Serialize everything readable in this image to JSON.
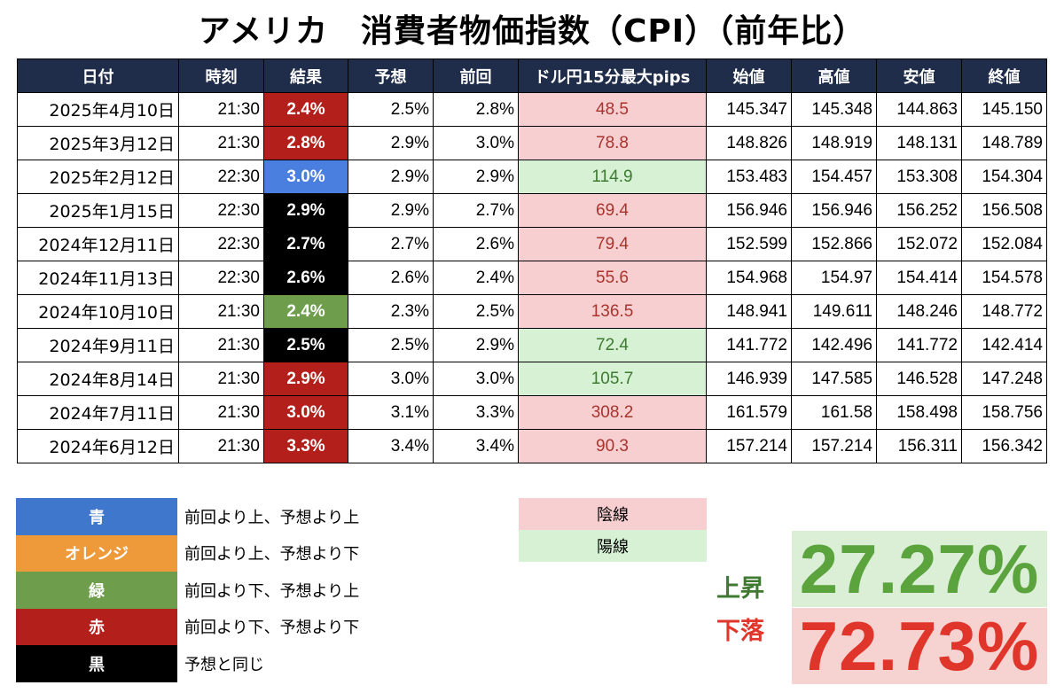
{
  "title": "アメリカ　消費者物価指数（CPI）（前年比）",
  "table": {
    "headers": [
      "日付",
      "時刻",
      "結果",
      "予想",
      "前回",
      "ドル円15分最大pips",
      "始値",
      "高値",
      "安値",
      "終値"
    ],
    "rows": [
      {
        "date": "2025年4月10日",
        "time": "21:30",
        "result": "2.4%",
        "result_color": "#b3201c",
        "forecast": "2.5%",
        "previous": "2.8%",
        "pips": "48.5",
        "pips_type": "陰線",
        "open": "145.347",
        "high": "145.348",
        "low": "144.863",
        "close": "145.150"
      },
      {
        "date": "2025年3月12日",
        "time": "21:30",
        "result": "2.8%",
        "result_color": "#b3201c",
        "forecast": "2.9%",
        "previous": "3.0%",
        "pips": "78.8",
        "pips_type": "陰線",
        "open": "148.826",
        "high": "148.919",
        "low": "148.131",
        "close": "148.789"
      },
      {
        "date": "2025年2月12日",
        "time": "22:30",
        "result": "3.0%",
        "result_color": "#4a7fe0",
        "forecast": "2.9%",
        "previous": "2.9%",
        "pips": "114.9",
        "pips_type": "陽線",
        "open": "153.483",
        "high": "154.457",
        "low": "153.308",
        "close": "154.304"
      },
      {
        "date": "2025年1月15日",
        "time": "22:30",
        "result": "2.9%",
        "result_color": "#000000",
        "forecast": "2.9%",
        "previous": "2.7%",
        "pips": "69.4",
        "pips_type": "陰線",
        "open": "156.946",
        "high": "156.946",
        "low": "156.252",
        "close": "156.508"
      },
      {
        "date": "2024年12月11日",
        "time": "22:30",
        "result": "2.7%",
        "result_color": "#000000",
        "forecast": "2.7%",
        "previous": "2.6%",
        "pips": "79.4",
        "pips_type": "陰線",
        "open": "152.599",
        "high": "152.866",
        "low": "152.072",
        "close": "152.084"
      },
      {
        "date": "2024年11月13日",
        "time": "22:30",
        "result": "2.6%",
        "result_color": "#000000",
        "forecast": "2.6%",
        "previous": "2.4%",
        "pips": "55.6",
        "pips_type": "陰線",
        "open": "154.968",
        "high": "154.97",
        "low": "154.414",
        "close": "154.578"
      },
      {
        "date": "2024年10月10日",
        "time": "21:30",
        "result": "2.4%",
        "result_color": "#6e9e4c",
        "forecast": "2.3%",
        "previous": "2.5%",
        "pips": "136.5",
        "pips_type": "陰線",
        "open": "148.941",
        "high": "149.611",
        "low": "148.246",
        "close": "148.772"
      },
      {
        "date": "2024年9月11日",
        "time": "21:30",
        "result": "2.5%",
        "result_color": "#000000",
        "forecast": "2.5%",
        "previous": "2.9%",
        "pips": "72.4",
        "pips_type": "陽線",
        "open": "141.772",
        "high": "142.496",
        "low": "141.772",
        "close": "142.414"
      },
      {
        "date": "2024年8月14日",
        "time": "21:30",
        "result": "2.9%",
        "result_color": "#b3201c",
        "forecast": "3.0%",
        "previous": "3.0%",
        "pips": "105.7",
        "pips_type": "陽線",
        "open": "146.939",
        "high": "147.585",
        "low": "146.528",
        "close": "147.248"
      },
      {
        "date": "2024年7月11日",
        "time": "21:30",
        "result": "3.0%",
        "result_color": "#b3201c",
        "forecast": "3.1%",
        "previous": "3.3%",
        "pips": "308.2",
        "pips_type": "陰線",
        "open": "161.579",
        "high": "161.58",
        "low": "158.498",
        "close": "158.756"
      },
      {
        "date": "2024年6月12日",
        "time": "21:30",
        "result": "3.3%",
        "result_color": "#b3201c",
        "forecast": "3.4%",
        "previous": "3.4%",
        "pips": "90.3",
        "pips_type": "陰線",
        "open": "157.214",
        "high": "157.214",
        "low": "156.311",
        "close": "156.342"
      }
    ]
  },
  "pips_styles": {
    "陰線": {
      "bg": "#f7cfd1",
      "fg": "#a8342e"
    },
    "陽線": {
      "bg": "#d6f1d4",
      "fg": "#3d7a32"
    }
  },
  "legend": [
    {
      "label": "青",
      "color": "#3f77cc",
      "desc": "前回より上、予想より上"
    },
    {
      "label": "オレンジ",
      "color": "#ef9a3a",
      "desc": "前回より上、予想より下"
    },
    {
      "label": "緑",
      "color": "#6e9e4c",
      "desc": "前回より下、予想より上"
    },
    {
      "label": "赤",
      "color": "#b3201c",
      "desc": "前回より下、予想より下"
    },
    {
      "label": "黒",
      "color": "#000000",
      "desc": "予想と同じ"
    }
  ],
  "candle_legend": [
    {
      "label": "陰線",
      "bg": "#f7cfd1"
    },
    {
      "label": "陽線",
      "bg": "#d6f1d4"
    }
  ],
  "stats": {
    "up": {
      "label": "上昇",
      "value": "27.27%",
      "label_color": "#3f7a30",
      "value_color": "#5aa33d",
      "bg": "#dbeed6"
    },
    "down": {
      "label": "下落",
      "value": "72.73%",
      "label_color": "#e0352b",
      "value_color": "#e0352b",
      "bg": "#f6d2d1"
    }
  }
}
